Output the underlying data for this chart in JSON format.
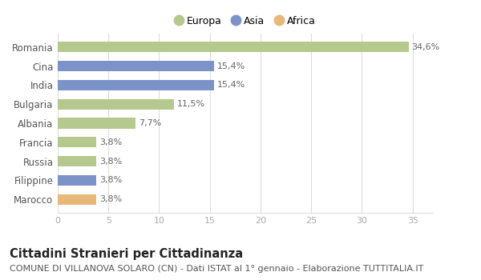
{
  "categories": [
    "Romania",
    "Cina",
    "India",
    "Bulgaria",
    "Albania",
    "Francia",
    "Russia",
    "Filippine",
    "Marocco"
  ],
  "values": [
    34.6,
    15.4,
    15.4,
    11.5,
    7.7,
    3.8,
    3.8,
    3.8,
    3.8
  ],
  "labels": [
    "34,6%",
    "15,4%",
    "15,4%",
    "11,5%",
    "7,7%",
    "3,8%",
    "3,8%",
    "3,8%",
    "3,8%"
  ],
  "colors": [
    "#b5c98e",
    "#7b93c9",
    "#7b93c9",
    "#b5c98e",
    "#b5c98e",
    "#b5c98e",
    "#b5c98e",
    "#7b93c9",
    "#e8b87a"
  ],
  "legend_labels": [
    "Europa",
    "Asia",
    "Africa"
  ],
  "legend_colors": [
    "#b5c98e",
    "#7b93c9",
    "#e8b87a"
  ],
  "xlim": [
    0,
    37
  ],
  "xticks": [
    0,
    5,
    10,
    15,
    20,
    25,
    30,
    35
  ],
  "title": "Cittadini Stranieri per Cittadinanza",
  "subtitle": "COMUNE DI VILLANOVA SOLARO (CN) - Dati ISTAT al 1° gennaio - Elaborazione TUTTITALIA.IT",
  "title_fontsize": 10.5,
  "subtitle_fontsize": 8,
  "background_color": "#ffffff",
  "grid_color": "#dddddd",
  "bar_height": 0.55
}
